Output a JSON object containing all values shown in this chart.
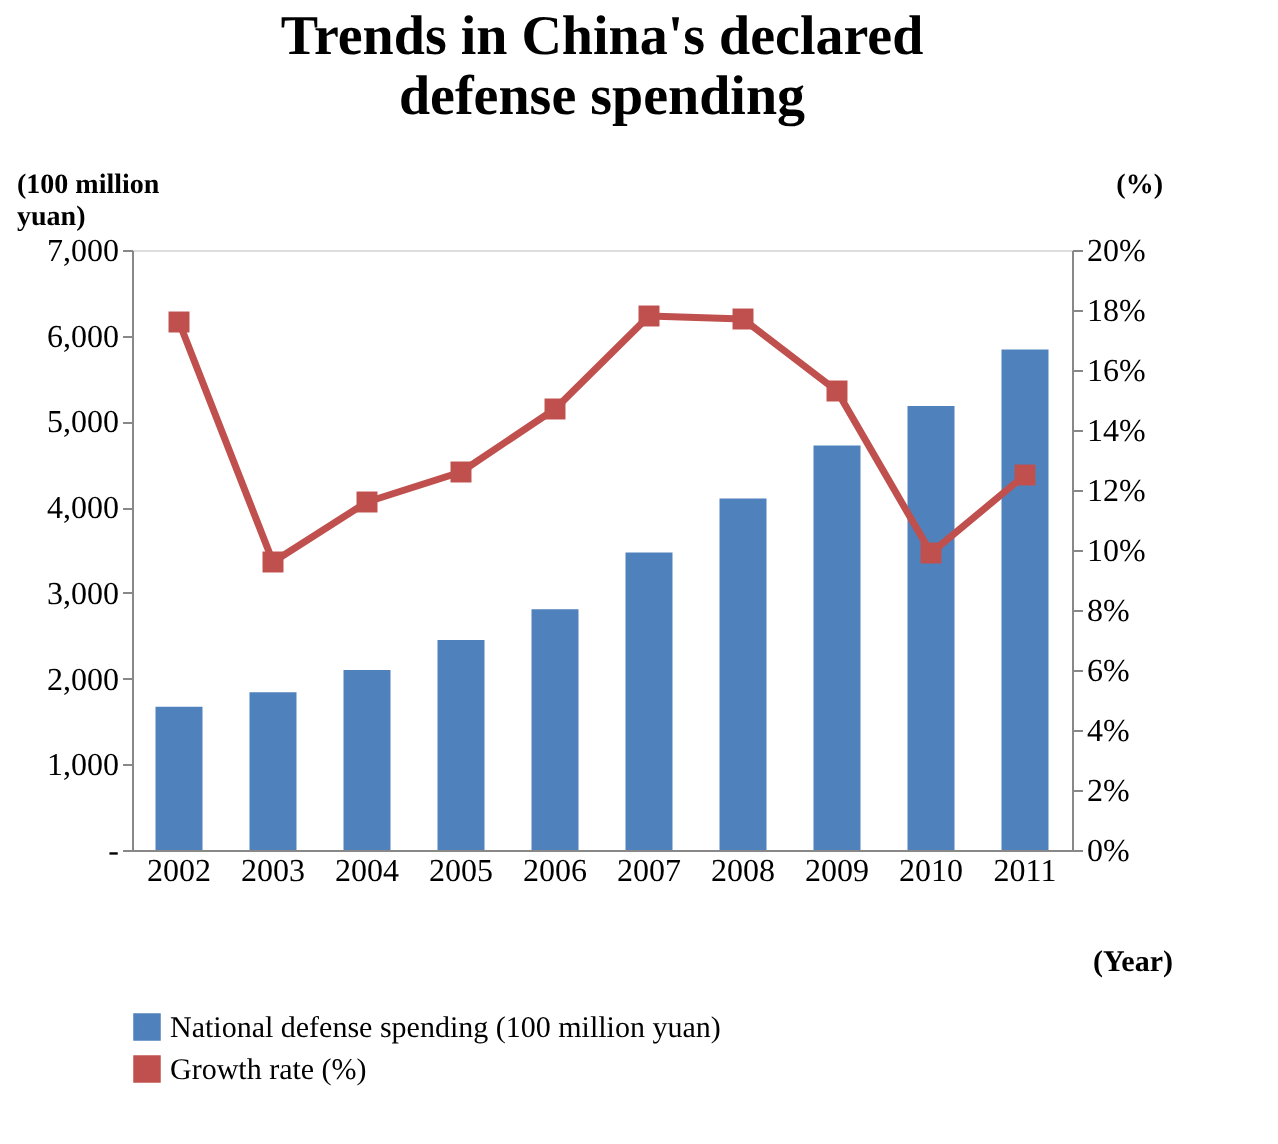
{
  "chart_data": {
    "type": "bar",
    "title": "Trends in China's declared defense spending",
    "ylabel": "(100 million yuan)",
    "y2label": "(%)",
    "xlabel": "(Year)",
    "categories": [
      "2002",
      "2003",
      "2004",
      "2005",
      "2006",
      "2007",
      "2008",
      "2009",
      "2010",
      "2011"
    ],
    "series": [
      {
        "name": "National defense spending (100 million yuan)",
        "color": "#4f81bd",
        "values": [
          1670,
          1840,
          2100,
          2450,
          2810,
          3470,
          4100,
          4720,
          5180,
          5840
        ]
      },
      {
        "name": "Growth rate (%)",
        "type": "line",
        "axis": "y2",
        "color": "#c0504d",
        "marker": "square",
        "values": [
          17.6,
          9.6,
          11.6,
          12.6,
          14.7,
          17.8,
          17.7,
          15.3,
          9.9,
          12.5
        ]
      }
    ],
    "ylim": [
      0,
      7000
    ],
    "yticks": [
      {
        "value": 0,
        "label": "-"
      },
      {
        "value": 1000,
        "label": "1,000"
      },
      {
        "value": 2000,
        "label": "2,000"
      },
      {
        "value": 3000,
        "label": "3,000"
      },
      {
        "value": 4000,
        "label": "4,000"
      },
      {
        "value": 5000,
        "label": "5,000"
      },
      {
        "value": 6000,
        "label": "6,000"
      },
      {
        "value": 7000,
        "label": "7,000"
      }
    ],
    "y2lim": [
      0,
      20
    ],
    "y2ticks": [
      {
        "value": 0,
        "label": "0%"
      },
      {
        "value": 2,
        "label": "2%"
      },
      {
        "value": 4,
        "label": "4%"
      },
      {
        "value": 6,
        "label": "6%"
      },
      {
        "value": 8,
        "label": "8%"
      },
      {
        "value": 10,
        "label": "10%"
      },
      {
        "value": 12,
        "label": "12%"
      },
      {
        "value": 14,
        "label": "14%"
      },
      {
        "value": 16,
        "label": "16%"
      },
      {
        "value": 18,
        "label": "18%"
      },
      {
        "value": 20,
        "label": "20%"
      }
    ],
    "legend": "bottom",
    "grid": false
  }
}
